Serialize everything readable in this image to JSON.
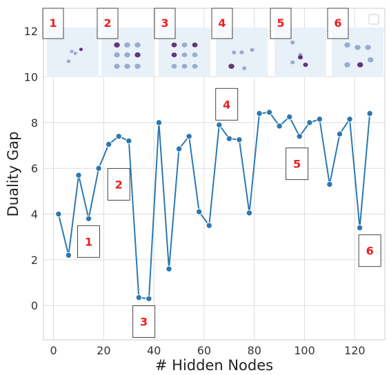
{
  "chart_data": {
    "type": "line",
    "xlabel": "# Hidden Nodes",
    "ylabel": "Duality Gap",
    "xlim": [
      -4,
      132
    ],
    "ylim": [
      -1.5,
      13
    ],
    "xticks": [
      0,
      20,
      40,
      60,
      80,
      100,
      120
    ],
    "yticks": [
      0,
      2,
      4,
      6,
      8,
      10,
      12
    ],
    "grid": true,
    "series_color": "#2b78b0",
    "callout_color": "#ee1c1c",
    "legend_box": true,
    "series": [
      {
        "x": [
          2,
          6,
          10,
          14,
          18,
          22,
          26,
          30,
          34,
          38,
          42,
          46,
          50,
          54,
          58,
          62,
          66,
          70,
          74,
          78,
          82,
          86,
          90,
          94,
          98,
          102,
          106,
          110,
          114,
          118,
          122,
          126
        ],
        "y": [
          4.0,
          2.2,
          5.7,
          3.8,
          6.0,
          7.05,
          7.4,
          7.2,
          0.35,
          0.3,
          8.0,
          1.6,
          6.85,
          7.4,
          4.1,
          3.5,
          7.9,
          7.3,
          7.25,
          4.05,
          8.4,
          8.45,
          7.85,
          8.25,
          7.4,
          8.0,
          8.15,
          5.3,
          7.5,
          8.15,
          3.4,
          8.4
        ]
      }
    ],
    "callouts": [
      {
        "label": "1",
        "x": 14,
        "y": 2.8
      },
      {
        "label": "2",
        "x": 26,
        "y": 5.3
      },
      {
        "label": "3",
        "x": 36,
        "y": -0.7
      },
      {
        "label": "4",
        "x": 69,
        "y": 8.8
      },
      {
        "label": "5",
        "x": 97,
        "y": 6.2
      },
      {
        "label": "6",
        "x": 126,
        "y": 2.4
      }
    ],
    "thumbnails": [
      {
        "label": "1"
      },
      {
        "label": "2"
      },
      {
        "label": "3"
      },
      {
        "label": "4"
      },
      {
        "label": "5"
      },
      {
        "label": "6"
      }
    ]
  }
}
